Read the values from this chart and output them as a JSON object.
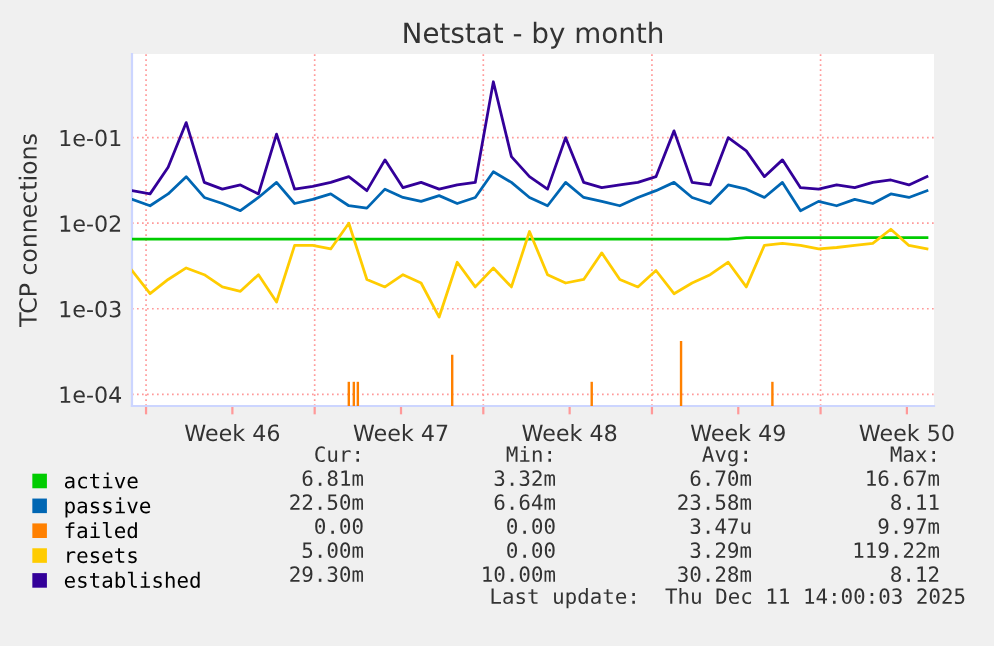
{
  "chart_data": {
    "type": "line",
    "title": "Netstat - by month",
    "ylabel": "TCP connections",
    "log": "y",
    "x": [
      "2025-11-09T10:00",
      "2025-11-10T04:00",
      "2025-11-10T22:00",
      "2025-11-11T16:00",
      "2025-11-12T10:00",
      "2025-11-13T04:00",
      "2025-11-13T22:00",
      "2025-11-14T16:00",
      "2025-11-15T10:00",
      "2025-11-16T04:00",
      "2025-11-16T22:00",
      "2025-11-17T16:00",
      "2025-11-18T10:00",
      "2025-11-19T04:00",
      "2025-11-19T22:00",
      "2025-11-20T16:00",
      "2025-11-21T10:00",
      "2025-11-22T04:00",
      "2025-11-22T22:00",
      "2025-11-23T16:00",
      "2025-11-24T10:00",
      "2025-11-25T04:00",
      "2025-11-25T22:00",
      "2025-11-26T16:00",
      "2025-11-27T10:00",
      "2025-11-28T04:00",
      "2025-11-28T22:00",
      "2025-11-29T16:00",
      "2025-11-30T10:00",
      "2025-12-01T04:00",
      "2025-12-01T22:00",
      "2025-12-02T16:00",
      "2025-12-03T10:00",
      "2025-12-04T04:00",
      "2025-12-04T22:00",
      "2025-12-05T16:00",
      "2025-12-06T10:00",
      "2025-12-07T04:00",
      "2025-12-07T22:00",
      "2025-12-08T16:00",
      "2025-12-09T10:00",
      "2025-12-10T04:00",
      "2025-12-10T22:00",
      "2025-12-11T16:00",
      "2025-12-12T10:00"
    ],
    "series": [
      {
        "name": "active",
        "color": "#00cc00",
        "values": [
          0.0065,
          0.0065,
          0.0065,
          0.0065,
          0.0065,
          0.0065,
          0.0065,
          0.0065,
          0.0065,
          0.0065,
          0.0065,
          0.0065,
          0.0065,
          0.0065,
          0.0065,
          0.0065,
          0.0065,
          0.0065,
          0.0065,
          0.0065,
          0.0065,
          0.0065,
          0.0065,
          0.0065,
          0.0065,
          0.0065,
          0.0065,
          0.0065,
          0.0065,
          0.0065,
          0.0065,
          0.0065,
          0.0065,
          0.0065,
          0.0068,
          0.0068,
          0.0068,
          0.0068,
          0.0068,
          0.0068,
          0.0068,
          0.0068,
          0.0068,
          0.0068,
          0.0068
        ]
      },
      {
        "name": "passive",
        "color": "#0066b3",
        "values": [
          0.019,
          0.016,
          0.022,
          0.035,
          0.02,
          0.017,
          0.014,
          0.02,
          0.03,
          0.017,
          0.019,
          0.022,
          0.016,
          0.015,
          0.025,
          0.02,
          0.018,
          0.021,
          0.017,
          0.02,
          0.04,
          0.03,
          0.02,
          0.016,
          0.03,
          0.02,
          0.018,
          0.016,
          0.02,
          0.024,
          0.03,
          0.02,
          0.017,
          0.028,
          0.025,
          0.02,
          0.03,
          0.014,
          0.018,
          0.016,
          0.019,
          0.017,
          0.022,
          0.02,
          0.024
        ]
      },
      {
        "name": "failed",
        "color": "#ff8000",
        "type": "bar",
        "x": [
          "2025-11-18T10:00",
          "2025-11-18T15:00",
          "2025-11-18T19:00",
          "2025-11-22T17:00",
          "2025-11-28T12:00",
          "2025-12-02T05:00",
          "2025-12-06T00:00"
        ],
        "values": [
          0.00014,
          0.00014,
          0.00014,
          0.00029,
          0.00014,
          0.00042,
          0.00014
        ]
      },
      {
        "name": "resets",
        "color": "#ffcc00",
        "values": [
          0.0028,
          0.0015,
          0.0022,
          0.003,
          0.0025,
          0.0018,
          0.0016,
          0.0025,
          0.0012,
          0.0055,
          0.0055,
          0.005,
          0.01,
          0.0022,
          0.0018,
          0.0025,
          0.002,
          0.0008,
          0.0035,
          0.0018,
          0.003,
          0.0018,
          0.008,
          0.0025,
          0.002,
          0.0022,
          0.0045,
          0.0022,
          0.0018,
          0.0028,
          0.0015,
          0.002,
          0.0025,
          0.0035,
          0.0018,
          0.0055,
          0.0058,
          0.0055,
          0.005,
          0.0052,
          0.0055,
          0.0058,
          0.0085,
          0.0055,
          0.005
        ]
      },
      {
        "name": "established",
        "color": "#330099",
        "values": [
          0.024,
          0.022,
          0.045,
          0.15,
          0.03,
          0.025,
          0.028,
          0.022,
          0.11,
          0.025,
          0.027,
          0.03,
          0.035,
          0.024,
          0.055,
          0.026,
          0.03,
          0.025,
          0.028,
          0.03,
          0.45,
          0.06,
          0.035,
          0.025,
          0.1,
          0.03,
          0.026,
          0.028,
          0.03,
          0.035,
          0.12,
          0.03,
          0.028,
          0.1,
          0.07,
          0.035,
          0.055,
          0.026,
          0.025,
          0.028,
          0.026,
          0.03,
          0.032,
          0.028,
          0.035
        ]
      }
    ],
    "xlim": [
      "2025-11-09T10:00",
      "2025-12-12T17:00"
    ],
    "xticks": [
      {
        "value": "2025-11-10",
        "label": null
      },
      {
        "value": "2025-11-13T14:00",
        "label": "Week 46"
      },
      {
        "value": "2025-11-17",
        "label": null
      },
      {
        "value": "2025-11-20T14:00",
        "label": "Week 47"
      },
      {
        "value": "2025-11-24",
        "label": null
      },
      {
        "value": "2025-11-27T14:00",
        "label": "Week 48"
      },
      {
        "value": "2025-12-01",
        "label": null
      },
      {
        "value": "2025-12-04T14:00",
        "label": "Week 49"
      },
      {
        "value": "2025-12-08",
        "label": null
      },
      {
        "value": "2025-12-11T14:00",
        "label": "Week 50"
      }
    ],
    "ylim": [
      7.3e-05,
      0.95
    ],
    "yticks": [
      {
        "value": 0.0001,
        "label": "1e-04"
      },
      {
        "value": 0.001,
        "label": "1e-03"
      },
      {
        "value": 0.01,
        "label": "1e-02"
      },
      {
        "value": 0.1,
        "label": "1e-01"
      }
    ],
    "grid": true,
    "legend": "bottom",
    "annotations": [
      "Cur:",
      "Min:",
      "Avg:",
      "Max:",
      "6.81m",
      "3.32m",
      "6.70m",
      "16.67m",
      "22.50m",
      "6.64m",
      "23.58m",
      "8.11",
      "0.00",
      "0.00",
      "3.47u",
      "9.97m",
      "5.00m",
      "0.00",
      "3.29m",
      "119.22m",
      "29.30m",
      "10.00m",
      "30.28m",
      "8.12",
      "Last update:  Thu Dec 11 14:00:03 2025"
    ]
  }
}
